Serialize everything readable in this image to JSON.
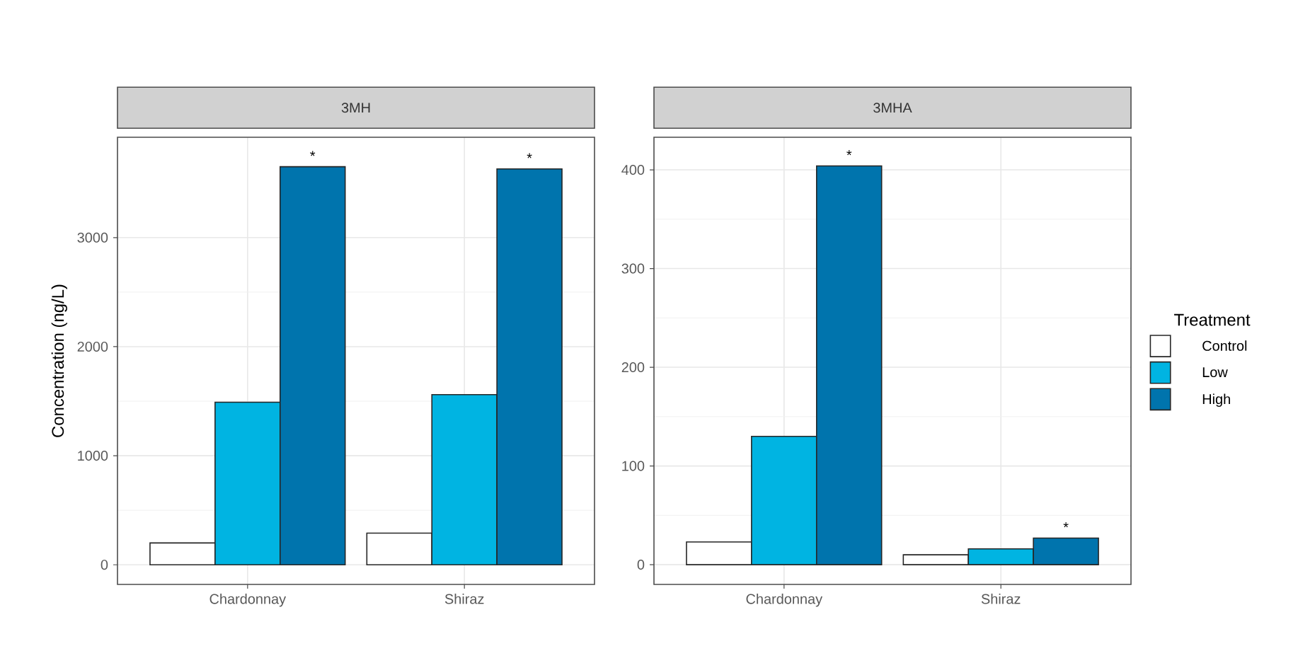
{
  "chart_data": [
    {
      "type": "bar",
      "title": "3MH",
      "ylabel": "Concentration (ng/L)",
      "categories": [
        "Chardonnay",
        "Shiraz"
      ],
      "series": [
        {
          "color": "#ffffff",
          "values": [
            200,
            290
          ]
        },
        {
          "color": "#00b4e2",
          "values": [
            1490,
            1560
          ]
        },
        {
          "color": "#0074ad",
          "values": [
            3650,
            3630
          ]
        }
      ],
      "ylim": [
        -180,
        3920
      ],
      "yticks": [
        0,
        1000,
        2000,
        3000
      ],
      "grid": true,
      "legend": false,
      "annotations": [
        "*",
        "*"
      ]
    },
    {
      "type": "bar",
      "title": "3MHA",
      "categories": [
        "Chardonnay",
        "Shiraz"
      ],
      "legend_title": "Treatment",
      "series": [
        {
          "name": "Control",
          "color": "#ffffff",
          "values": [
            23,
            10
          ]
        },
        {
          "name": "Low",
          "color": "#00b4e2",
          "values": [
            130,
            16
          ]
        },
        {
          "name": "High",
          "color": "#0074ad",
          "values": [
            404,
            27
          ]
        }
      ],
      "ylim": [
        -20,
        433
      ],
      "yticks": [
        0,
        100,
        200,
        300,
        400
      ],
      "grid": true,
      "legend": "right",
      "annotations": [
        "*",
        "*"
      ]
    }
  ]
}
